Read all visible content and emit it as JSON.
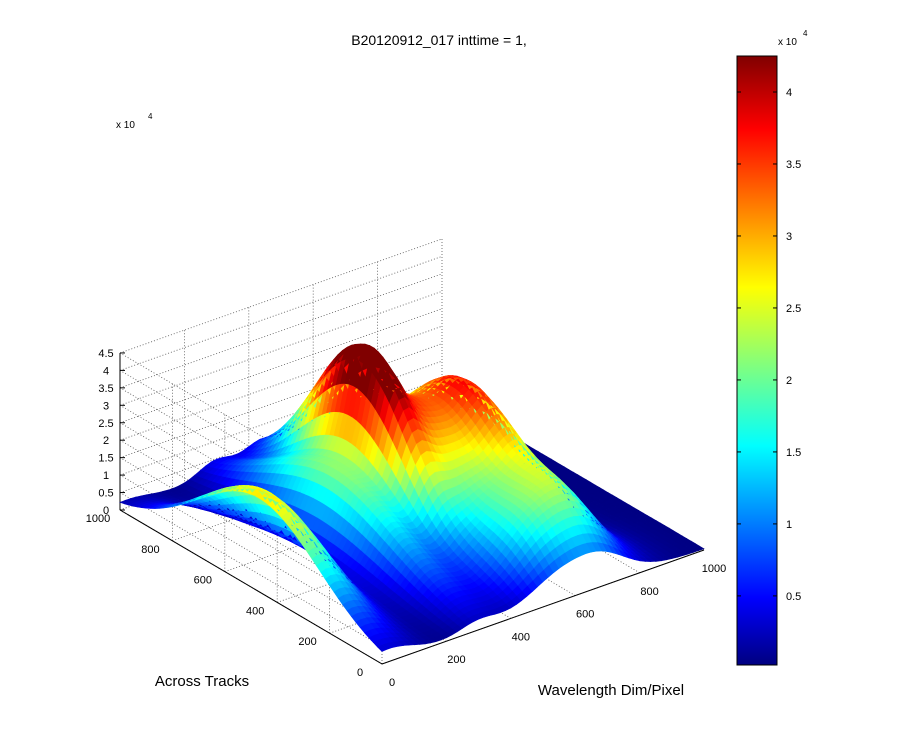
{
  "chart_data": {
    "type": "surface",
    "title": "B20120912_017 inttime = 1,",
    "xlabel": "Wavelength Dim/Pixel",
    "ylabel": "Across Tracks",
    "zlabel": "",
    "xlim": [
      0,
      1000
    ],
    "ylim": [
      0,
      1000
    ],
    "zlim": [
      0,
      45000
    ],
    "x_ticks": [
      "0",
      "200",
      "400",
      "600",
      "800",
      "1000"
    ],
    "y_ticks": [
      "0",
      "200",
      "400",
      "600",
      "800",
      "1000"
    ],
    "z_ticks": [
      "0",
      "0.5",
      "1",
      "1.5",
      "2",
      "2.5",
      "3",
      "3.5",
      "4",
      "4.5"
    ],
    "z_exponent_label": "x 10",
    "z_exponent": "4",
    "colorbar": {
      "ticks": [
        "0.5",
        "1",
        "1.5",
        "2",
        "2.5",
        "3",
        "3.5",
        "4"
      ],
      "exponent_label": "x 10",
      "exponent": "4",
      "range": [
        200,
        42500
      ],
      "colormap": "jet"
    },
    "grid": true,
    "peaks": [
      {
        "x": 20,
        "y": 470,
        "z": 27500,
        "sx": 75,
        "sy": 230
      },
      {
        "x": 300,
        "y": 540,
        "z": 21000,
        "sx": 55,
        "sy": 260
      },
      {
        "x": 430,
        "y": 600,
        "z": 42000,
        "sx": 45,
        "sy": 190
      },
      {
        "x": 520,
        "y": 560,
        "z": 24000,
        "sx": 55,
        "sy": 220
      },
      {
        "x": 630,
        "y": 520,
        "z": 21000,
        "sx": 70,
        "sy": 200
      },
      {
        "x": 700,
        "y": 480,
        "z": 21000,
        "sx": 65,
        "sy": 220
      },
      {
        "x": 610,
        "y": 120,
        "z": 16000,
        "sx": 120,
        "sy": 110
      }
    ]
  }
}
